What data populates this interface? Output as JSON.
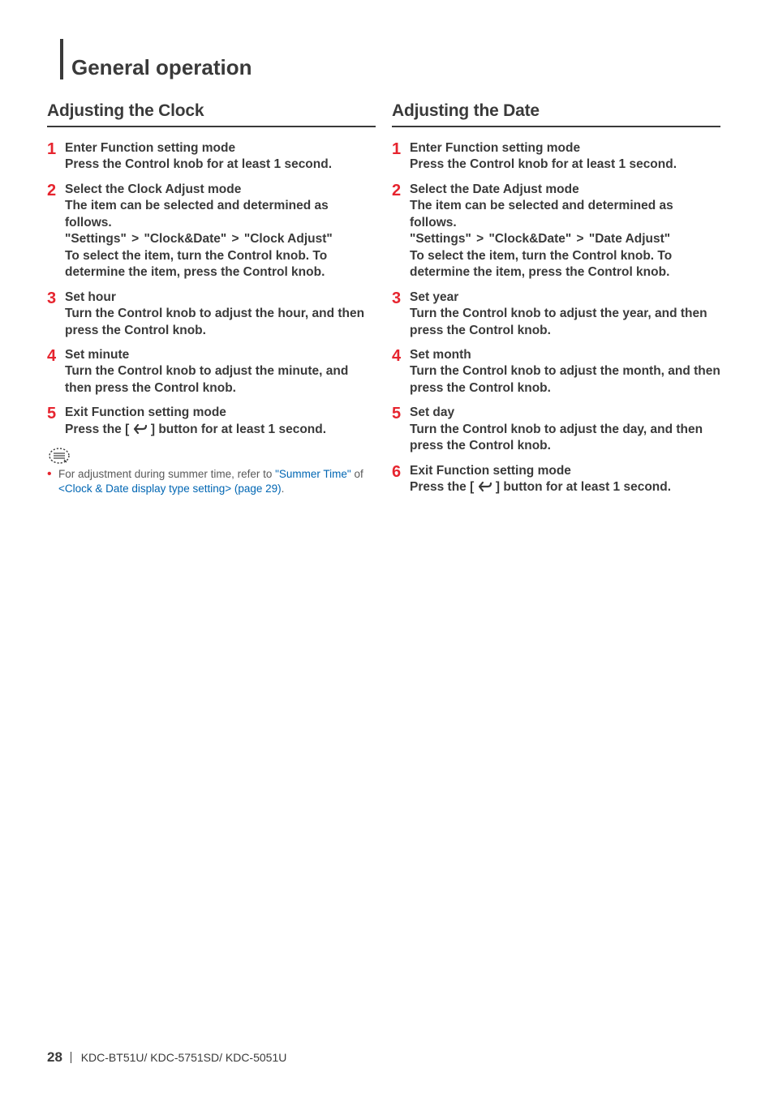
{
  "section_title": "General operation",
  "left": {
    "title": "Adjusting the Clock",
    "steps": [
      {
        "num": "1",
        "heading": "Enter Function setting mode",
        "lines": [
          "Press the Control knob for at least 1 second."
        ]
      },
      {
        "num": "2",
        "heading": "Select the Clock Adjust mode",
        "lines": [
          "The item can be selected and determined as follows.",
          {
            "path": [
              "\"Settings\"",
              "\"Clock&Date\"",
              "\"Clock Adjust\""
            ]
          },
          "To select the item, turn the Control knob. To determine the item, press the Control knob."
        ]
      },
      {
        "num": "3",
        "heading": "Set hour",
        "lines": [
          "Turn the Control knob to adjust the hour, and then press the Control knob."
        ]
      },
      {
        "num": "4",
        "heading": "Set minute",
        "lines": [
          "Turn the Control knob to adjust the minute, and then press the Control knob."
        ]
      },
      {
        "num": "5",
        "heading": "Exit Function setting mode",
        "lines": [
          {
            "back_btn": true,
            "prefix": "Press the [ ",
            "suffix": " ] button for at least 1 second."
          }
        ]
      }
    ],
    "note": {
      "prefix": "For adjustment during summer time, refer to ",
      "link1": "\"Summer Time\"",
      "mid": " of ",
      "link2": "<Clock & Date display type setting> (page 29)",
      "suffix": "."
    }
  },
  "right": {
    "title": "Adjusting the Date",
    "steps": [
      {
        "num": "1",
        "heading": "Enter Function setting mode",
        "lines": [
          "Press the Control knob for at least 1 second."
        ]
      },
      {
        "num": "2",
        "heading": "Select the Date Adjust mode",
        "lines": [
          "The item can be selected and determined as follows.",
          {
            "path": [
              "\"Settings\"",
              "\"Clock&Date\"",
              "\"Date Adjust\""
            ]
          },
          "To select the item, turn the Control knob. To determine the item, press the Control knob."
        ]
      },
      {
        "num": "3",
        "heading": "Set year",
        "lines": [
          "Turn the Control knob to adjust the year, and then press the Control knob."
        ]
      },
      {
        "num": "4",
        "heading": "Set month",
        "lines": [
          "Turn the Control knob to adjust the month, and then press the Control knob."
        ]
      },
      {
        "num": "5",
        "heading": "Set day",
        "lines": [
          "Turn the Control knob to adjust the day, and then press the Control knob."
        ]
      },
      {
        "num": "6",
        "heading": "Exit Function setting mode",
        "lines": [
          {
            "back_btn": true,
            "prefix": "Press the [ ",
            "suffix": " ] button for at least 1 second."
          }
        ]
      }
    ]
  },
  "footer": {
    "page": "28",
    "models": "KDC-BT51U/ KDC-5751SD/ KDC-5051U"
  },
  "colors": {
    "accent_red": "#e6242e",
    "text": "#3a3a3a",
    "link": "#0066b3"
  }
}
